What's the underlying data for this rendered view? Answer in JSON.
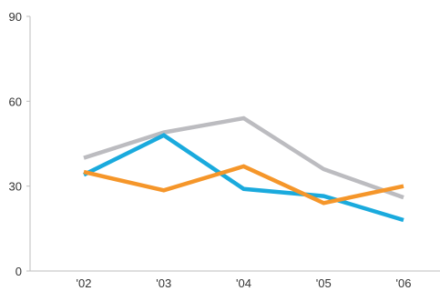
{
  "chart_data": {
    "type": "line",
    "categories": [
      "'02",
      "'03",
      "'04",
      "'05",
      "'06"
    ],
    "series": [
      {
        "values": [
          40,
          49,
          54,
          36,
          26
        ],
        "color": "#bcbcc0"
      },
      {
        "values": [
          34,
          48,
          29,
          26.5,
          18
        ],
        "color": "#1aaadd"
      },
      {
        "values": [
          35,
          28.5,
          37,
          24,
          30
        ],
        "color": "#f5962a"
      }
    ],
    "ylim": [
      0,
      90
    ],
    "yticks": [
      0,
      30,
      60,
      90
    ],
    "title": "",
    "xlabel": "",
    "ylabel": "",
    "grid": false,
    "legend": "none"
  }
}
